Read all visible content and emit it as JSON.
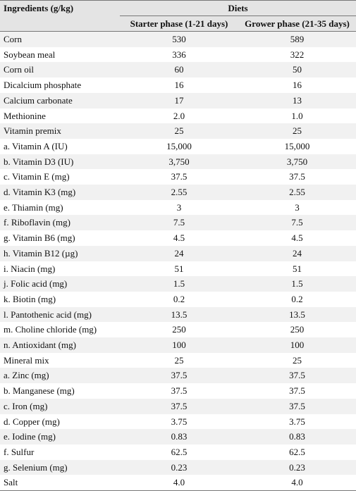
{
  "table": {
    "header": {
      "ingredients": "Ingredients (g/kg)",
      "group": "Diets",
      "columns": [
        "Starter phase (1-21 days)",
        "Grower phase (21-35 days)"
      ]
    },
    "rows": [
      [
        "Corn",
        "530",
        "589"
      ],
      [
        "Soybean meal",
        "336",
        "322"
      ],
      [
        "Corn oil",
        "60",
        "50"
      ],
      [
        "Dicalcium phosphate",
        "16",
        "16"
      ],
      [
        "Calcium carbonate",
        "17",
        "13"
      ],
      [
        "Methionine",
        "2.0",
        "1.0"
      ],
      [
        "Vitamin premix",
        "25",
        "25"
      ],
      [
        "a. Vitamin A (IU)",
        "15,000",
        "15,000"
      ],
      [
        "b. Vitamin D3 (IU)",
        "3,750",
        "3,750"
      ],
      [
        "c. Vitamin E (mg)",
        "37.5",
        "37.5"
      ],
      [
        "d. Vitamin K3 (mg)",
        "2.55",
        "2.55"
      ],
      [
        "e. Thiamin (mg)",
        "3",
        "3"
      ],
      [
        "f. Riboflavin (mg)",
        "7.5",
        "7.5"
      ],
      [
        "g. Vitamin B6 (mg)",
        "4.5",
        "4.5"
      ],
      [
        "h. Vitamin B12 (µg)",
        "24",
        "24"
      ],
      [
        "i. Niacin (mg)",
        "51",
        "51"
      ],
      [
        "j. Folic acid (mg)",
        "1.5",
        "1.5"
      ],
      [
        "k. Biotin (mg)",
        "0.2",
        "0.2"
      ],
      [
        "l. Pantothenic acid (mg)",
        "13.5",
        "13.5"
      ],
      [
        "m. Choline chloride (mg)",
        "250",
        "250"
      ],
      [
        "n. Antioxidant (mg)",
        "100",
        "100"
      ],
      [
        "Mineral mix",
        "25",
        "25"
      ],
      [
        "a. Zinc (mg)",
        "37.5",
        "37.5"
      ],
      [
        "b. Manganese (mg)",
        "37.5",
        "37.5"
      ],
      [
        "c. Iron (mg)",
        "37.5",
        "37.5"
      ],
      [
        "d. Copper (mg)",
        "3.75",
        "3.75"
      ],
      [
        "e. Iodine (mg)",
        "0.83",
        "0.83"
      ],
      [
        "f. Sulfur",
        "62.5",
        "62.5"
      ],
      [
        "g. Selenium (mg)",
        "0.23",
        "0.23"
      ],
      [
        "Salt",
        "4.0",
        "4.0"
      ]
    ]
  }
}
